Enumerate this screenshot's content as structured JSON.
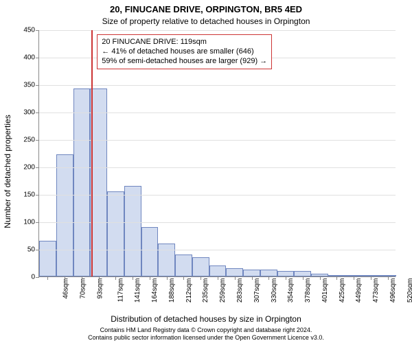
{
  "title": "20, FINUCANE DRIVE, ORPINGTON, BR5 4ED",
  "subtitle": "Size of property relative to detached houses in Orpington",
  "ylabel": "Number of detached properties",
  "xlabel": "Distribution of detached houses by size in Orpington",
  "footnote1": "Contains HM Land Registry data © Crown copyright and database right 2024.",
  "footnote2": "Contains public sector information licensed under the Open Government Licence v3.0.",
  "chart": {
    "type": "histogram",
    "ylim": [
      0,
      450
    ],
    "ytick_step": 50,
    "background_color": "#ffffff",
    "grid_color": "#e0e0e0",
    "axis_color": "#888888",
    "bar_fill": "#d2dcf0",
    "bar_stroke": "#6f86bf",
    "bar_width_ratio": 1.0,
    "marker_value": 119,
    "marker_color": "#cc3333",
    "x_start": 46,
    "x_bin_width": 23.7,
    "categories": [
      "46sqm",
      "70sqm",
      "93sqm",
      "117sqm",
      "141sqm",
      "164sqm",
      "188sqm",
      "212sqm",
      "235sqm",
      "259sqm",
      "283sqm",
      "307sqm",
      "330sqm",
      "354sqm",
      "378sqm",
      "401sqm",
      "425sqm",
      "449sqm",
      "473sqm",
      "496sqm",
      "520sqm"
    ],
    "values": [
      65,
      222,
      343,
      342,
      155,
      165,
      90,
      60,
      40,
      35,
      20,
      15,
      12,
      12,
      10,
      10,
      5,
      3,
      2,
      2,
      1
    ],
    "label_fontsize": 12,
    "tick_fontsize": 10,
    "title_fontsize": 13
  },
  "callout": {
    "line1": "20 FINUCANE DRIVE: 119sqm",
    "line2": "← 41% of detached houses are smaller (646)",
    "line3": "59% of semi-detached houses are larger (929) →",
    "border_color": "#cc3333",
    "bg_color": "#ffffff",
    "fontsize": 11
  }
}
